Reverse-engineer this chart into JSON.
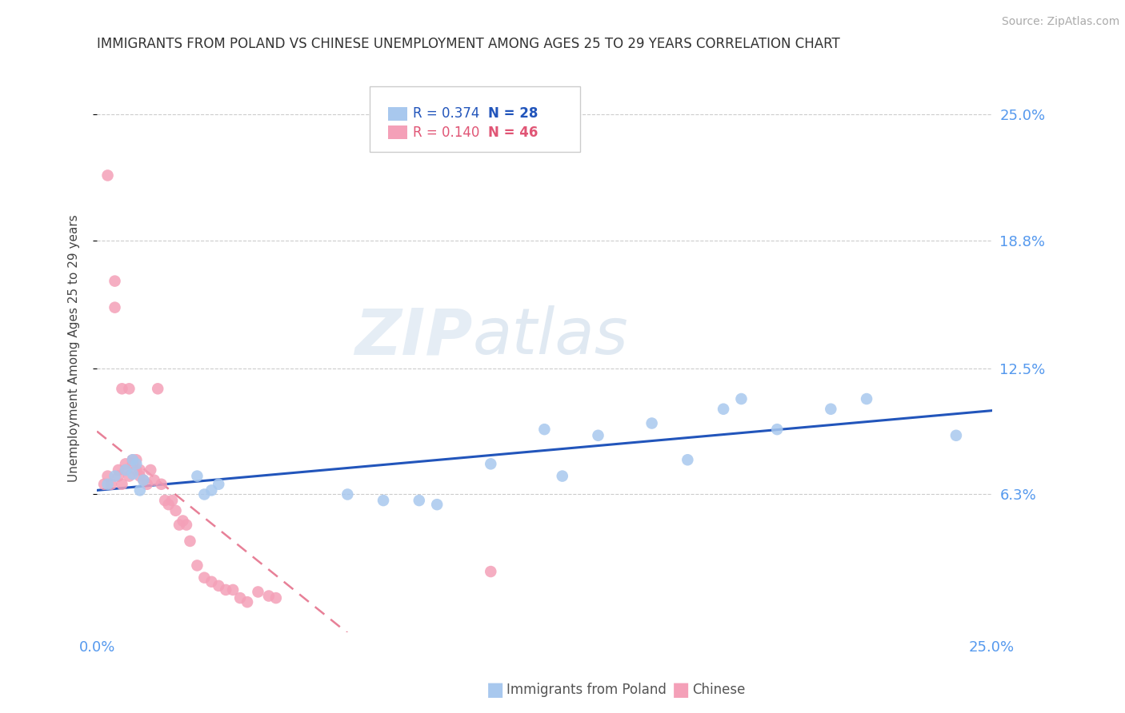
{
  "title": "IMMIGRANTS FROM POLAND VS CHINESE UNEMPLOYMENT AMONG AGES 25 TO 29 YEARS CORRELATION CHART",
  "source": "Source: ZipAtlas.com",
  "ylabel": "Unemployment Among Ages 25 to 29 years",
  "y_tick_labels": [
    "6.3%",
    "12.5%",
    "18.8%",
    "25.0%"
  ],
  "y_tick_values": [
    0.063,
    0.125,
    0.188,
    0.25
  ],
  "xlim": [
    0.0,
    0.25
  ],
  "ylim": [
    -0.005,
    0.275
  ],
  "legend_R1": "R = 0.374",
  "legend_N1": "N = 28",
  "legend_R2": "R = 0.140",
  "legend_N2": "N = 46",
  "color_poland": "#A8C8EE",
  "color_chinese": "#F4A0B8",
  "color_poland_line": "#2255BB",
  "color_chinese_line": "#E05575",
  "color_axis_labels": "#5599EE",
  "watermark_zip": "ZIP",
  "watermark_atlas": "atlas",
  "poland_x": [
    0.003,
    0.005,
    0.008,
    0.01,
    0.01,
    0.011,
    0.012,
    0.013,
    0.028,
    0.03,
    0.032,
    0.034,
    0.07,
    0.08,
    0.09,
    0.095,
    0.11,
    0.125,
    0.13,
    0.14,
    0.155,
    0.165,
    0.175,
    0.18,
    0.19,
    0.205,
    0.215,
    0.24
  ],
  "poland_y": [
    0.068,
    0.072,
    0.075,
    0.08,
    0.073,
    0.078,
    0.065,
    0.07,
    0.072,
    0.063,
    0.065,
    0.068,
    0.063,
    0.06,
    0.06,
    0.058,
    0.078,
    0.095,
    0.072,
    0.092,
    0.098,
    0.08,
    0.105,
    0.11,
    0.095,
    0.105,
    0.11,
    0.092
  ],
  "chinese_x": [
    0.002,
    0.003,
    0.003,
    0.004,
    0.005,
    0.005,
    0.006,
    0.006,
    0.007,
    0.007,
    0.008,
    0.008,
    0.009,
    0.009,
    0.01,
    0.01,
    0.011,
    0.011,
    0.012,
    0.012,
    0.013,
    0.014,
    0.015,
    0.016,
    0.017,
    0.018,
    0.019,
    0.02,
    0.021,
    0.022,
    0.023,
    0.024,
    0.025,
    0.026,
    0.028,
    0.03,
    0.032,
    0.034,
    0.036,
    0.038,
    0.04,
    0.042,
    0.045,
    0.048,
    0.05,
    0.11
  ],
  "chinese_y": [
    0.068,
    0.22,
    0.072,
    0.068,
    0.168,
    0.155,
    0.072,
    0.075,
    0.115,
    0.068,
    0.075,
    0.078,
    0.115,
    0.072,
    0.078,
    0.08,
    0.075,
    0.08,
    0.072,
    0.075,
    0.07,
    0.068,
    0.075,
    0.07,
    0.115,
    0.068,
    0.06,
    0.058,
    0.06,
    0.055,
    0.048,
    0.05,
    0.048,
    0.04,
    0.028,
    0.022,
    0.02,
    0.018,
    0.016,
    0.016,
    0.012,
    0.01,
    0.015,
    0.013,
    0.012,
    0.025
  ]
}
